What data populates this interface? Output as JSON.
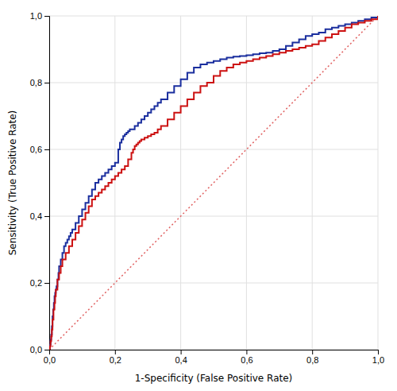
{
  "chart_data": {
    "type": "line",
    "xlabel": "1-Specificity (False Positive Rate)",
    "ylabel": "Sensitivity (True Positive Rate)",
    "xlim": [
      0.0,
      1.0
    ],
    "ylim": [
      0.0,
      1.0
    ],
    "xticks": [
      {
        "value": 0.0,
        "label": "0,0"
      },
      {
        "value": 0.2,
        "label": "0,2"
      },
      {
        "value": 0.4,
        "label": "0,4"
      },
      {
        "value": 0.6,
        "label": "0,6"
      },
      {
        "value": 0.8,
        "label": "0,8"
      },
      {
        "value": 1.0,
        "label": "1,0"
      }
    ],
    "yticks": [
      {
        "value": 0.0,
        "label": "0,0"
      },
      {
        "value": 0.2,
        "label": "0,2"
      },
      {
        "value": 0.4,
        "label": "0,4"
      },
      {
        "value": 0.6,
        "label": "0,6"
      },
      {
        "value": 0.8,
        "label": "0,8"
      },
      {
        "value": 1.0,
        "label": "1,0"
      }
    ],
    "grid": true,
    "series": [
      {
        "type": "line",
        "line_style": "dotted",
        "color": "#e06060",
        "x": [
          0,
          1
        ],
        "values": [
          0,
          1
        ]
      },
      {
        "type": "step",
        "color": "#1a2e9e",
        "x": [
          0.0,
          0.002,
          0.004,
          0.006,
          0.008,
          0.01,
          0.012,
          0.014,
          0.016,
          0.018,
          0.02,
          0.022,
          0.025,
          0.028,
          0.03,
          0.035,
          0.04,
          0.045,
          0.05,
          0.055,
          0.06,
          0.065,
          0.07,
          0.08,
          0.09,
          0.1,
          0.11,
          0.12,
          0.13,
          0.14,
          0.15,
          0.16,
          0.17,
          0.18,
          0.19,
          0.2,
          0.21,
          0.215,
          0.22,
          0.225,
          0.23,
          0.235,
          0.24,
          0.245,
          0.25,
          0.26,
          0.27,
          0.28,
          0.29,
          0.3,
          0.31,
          0.32,
          0.33,
          0.34,
          0.36,
          0.38,
          0.4,
          0.42,
          0.44,
          0.46,
          0.48,
          0.5,
          0.52,
          0.54,
          0.56,
          0.58,
          0.6,
          0.62,
          0.64,
          0.66,
          0.68,
          0.7,
          0.72,
          0.74,
          0.76,
          0.78,
          0.8,
          0.82,
          0.84,
          0.86,
          0.88,
          0.9,
          0.92,
          0.94,
          0.96,
          0.98,
          1.0
        ],
        "values": [
          0.0,
          0.015,
          0.03,
          0.045,
          0.07,
          0.1,
          0.12,
          0.14,
          0.16,
          0.17,
          0.18,
          0.19,
          0.21,
          0.23,
          0.25,
          0.27,
          0.29,
          0.31,
          0.32,
          0.33,
          0.34,
          0.35,
          0.36,
          0.38,
          0.4,
          0.42,
          0.44,
          0.46,
          0.48,
          0.5,
          0.51,
          0.52,
          0.53,
          0.54,
          0.55,
          0.56,
          0.6,
          0.62,
          0.63,
          0.64,
          0.645,
          0.65,
          0.655,
          0.66,
          0.66,
          0.67,
          0.68,
          0.69,
          0.7,
          0.71,
          0.72,
          0.73,
          0.74,
          0.75,
          0.77,
          0.79,
          0.81,
          0.83,
          0.845,
          0.855,
          0.86,
          0.865,
          0.87,
          0.875,
          0.878,
          0.88,
          0.882,
          0.885,
          0.888,
          0.89,
          0.895,
          0.9,
          0.91,
          0.92,
          0.93,
          0.94,
          0.945,
          0.95,
          0.96,
          0.965,
          0.97,
          0.975,
          0.98,
          0.985,
          0.99,
          0.995,
          1.0
        ]
      },
      {
        "type": "step",
        "color": "#cc1111",
        "x": [
          0.0,
          0.002,
          0.004,
          0.006,
          0.008,
          0.01,
          0.013,
          0.016,
          0.018,
          0.02,
          0.025,
          0.03,
          0.035,
          0.04,
          0.05,
          0.06,
          0.07,
          0.08,
          0.09,
          0.1,
          0.11,
          0.12,
          0.13,
          0.14,
          0.15,
          0.16,
          0.17,
          0.18,
          0.19,
          0.2,
          0.21,
          0.22,
          0.23,
          0.24,
          0.25,
          0.255,
          0.26,
          0.265,
          0.27,
          0.275,
          0.28,
          0.29,
          0.3,
          0.31,
          0.32,
          0.33,
          0.34,
          0.36,
          0.38,
          0.4,
          0.42,
          0.44,
          0.46,
          0.48,
          0.5,
          0.52,
          0.54,
          0.56,
          0.58,
          0.6,
          0.62,
          0.64,
          0.66,
          0.68,
          0.7,
          0.72,
          0.74,
          0.76,
          0.78,
          0.8,
          0.82,
          0.84,
          0.86,
          0.88,
          0.9,
          0.92,
          0.94,
          0.96,
          0.98,
          1.0
        ],
        "values": [
          0.0,
          0.01,
          0.025,
          0.04,
          0.06,
          0.09,
          0.12,
          0.14,
          0.16,
          0.18,
          0.21,
          0.23,
          0.25,
          0.27,
          0.29,
          0.31,
          0.33,
          0.35,
          0.37,
          0.39,
          0.41,
          0.43,
          0.45,
          0.46,
          0.47,
          0.48,
          0.49,
          0.5,
          0.51,
          0.52,
          0.53,
          0.54,
          0.55,
          0.57,
          0.59,
          0.6,
          0.61,
          0.615,
          0.62,
          0.625,
          0.63,
          0.635,
          0.64,
          0.645,
          0.65,
          0.66,
          0.67,
          0.69,
          0.71,
          0.73,
          0.75,
          0.77,
          0.79,
          0.8,
          0.82,
          0.835,
          0.845,
          0.855,
          0.86,
          0.865,
          0.87,
          0.875,
          0.88,
          0.885,
          0.89,
          0.895,
          0.9,
          0.905,
          0.91,
          0.915,
          0.925,
          0.935,
          0.945,
          0.955,
          0.965,
          0.975,
          0.98,
          0.985,
          0.99,
          1.0
        ]
      }
    ]
  }
}
